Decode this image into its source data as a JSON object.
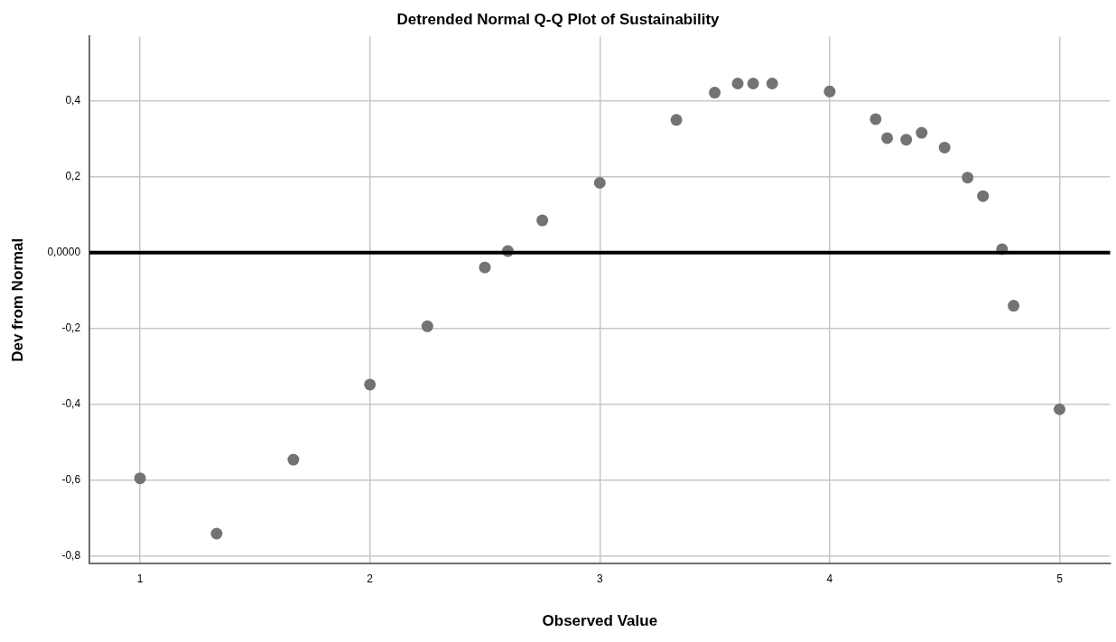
{
  "chart_data": {
    "type": "scatter",
    "title": "Detrended Normal Q-Q Plot of Sustainability",
    "xlabel": "Observed Value",
    "ylabel": "Dev from Normal",
    "x": [
      1,
      1.333,
      1.667,
      2,
      2.25,
      2.5,
      2.6,
      2.75,
      3,
      3.333,
      3.5,
      3.6,
      3.667,
      3.75,
      4,
      4.2,
      4.25,
      4.333,
      4.4,
      4.5,
      4.6,
      4.667,
      4.75,
      4.8,
      5
    ],
    "series": [
      {
        "color": "#737373",
        "values": [
          -0.595,
          -0.741,
          -0.546,
          -0.348,
          -0.194,
          -0.039,
          0.004,
          0.085,
          0.184,
          0.35,
          0.422,
          0.446,
          0.446,
          0.446,
          0.425,
          0.352,
          0.302,
          0.298,
          0.316,
          0.277,
          0.198,
          0.149,
          0.009,
          -0.14,
          -0.413
        ]
      }
    ],
    "xlim": [
      0.78,
      5.22
    ],
    "xticks": [
      1,
      2,
      3,
      4,
      5
    ],
    "ylim": [
      -0.82,
      0.57
    ],
    "yticks": [
      {
        "value": -0.8,
        "label": "-0,8"
      },
      {
        "value": -0.6,
        "label": "-0,6"
      },
      {
        "value": -0.4,
        "label": "-0,4"
      },
      {
        "value": -0.2,
        "label": "-0,2"
      },
      {
        "value": 0,
        "label": "0,0000"
      },
      {
        "value": 0.2,
        "label": "0,2"
      },
      {
        "value": 0.4,
        "label": "0,4"
      }
    ],
    "ref_lines": [
      {
        "axis": "y",
        "value": 0,
        "color": "#000000"
      }
    ],
    "grid": true,
    "marker": "circle",
    "legend": false
  }
}
